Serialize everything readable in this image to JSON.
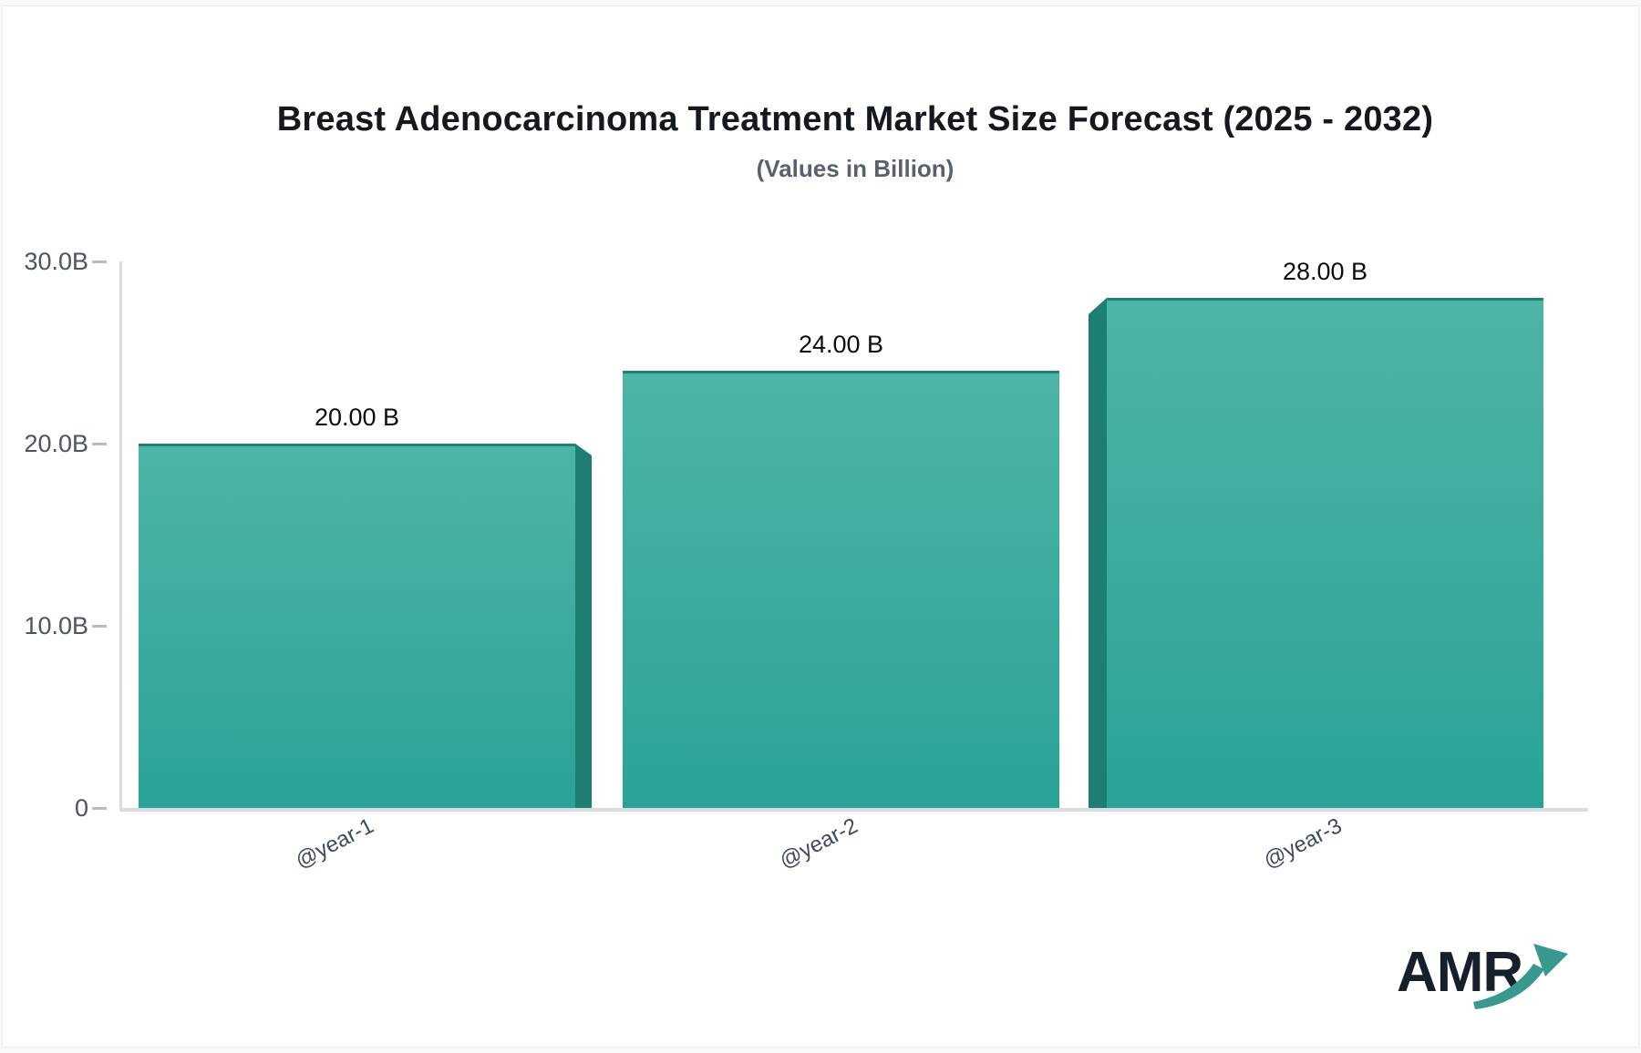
{
  "header": {
    "title": "Breast Adenocarcinoma Treatment Market Size Forecast (2025 - 2032)",
    "subtitle": "(Values in Billion)"
  },
  "chart_data": {
    "type": "bar",
    "title": "Breast Adenocarcinoma Treatment Market Size Forecast (2025 - 2032)",
    "subtitle": "(Values in Billion)",
    "categories": [
      "@year-1",
      "@year-2",
      "@year-3"
    ],
    "values": [
      20,
      24,
      28
    ],
    "value_labels": [
      "20.00 B",
      "24.00 B",
      "28.00 B"
    ],
    "unit": "Billion USD",
    "xlabel": "",
    "ylabel": "",
    "ylim": [
      0,
      30
    ],
    "yticks": [
      {
        "label": "30.0B",
        "value": 30
      },
      {
        "label": "20.0B",
        "value": 20
      },
      {
        "label": "10.0B",
        "value": 10
      },
      {
        "label": "0",
        "value": 0
      }
    ],
    "grid": false,
    "legend": false,
    "bar_style": "pseudo-3d-teal-gradient"
  },
  "colors": {
    "bar_gradient_top": "#4db4a6",
    "bar_gradient_bottom": "#29a396",
    "bar_top_border": "#1b8376",
    "bar_side_3d": "#1e7e72",
    "axis_line": "#d9dce1",
    "tick_mark": "#b6bcc6",
    "tick_label": "#4a5462",
    "x_label": "#3e4a5b",
    "value_label": "#0b0b0b",
    "title": "#14181f",
    "subtitle": "#59616e",
    "logo_text": "#15202b",
    "logo_arrow": "#39998f",
    "page_frame": "#f8f9fa"
  },
  "logo": {
    "text": "AMR"
  }
}
